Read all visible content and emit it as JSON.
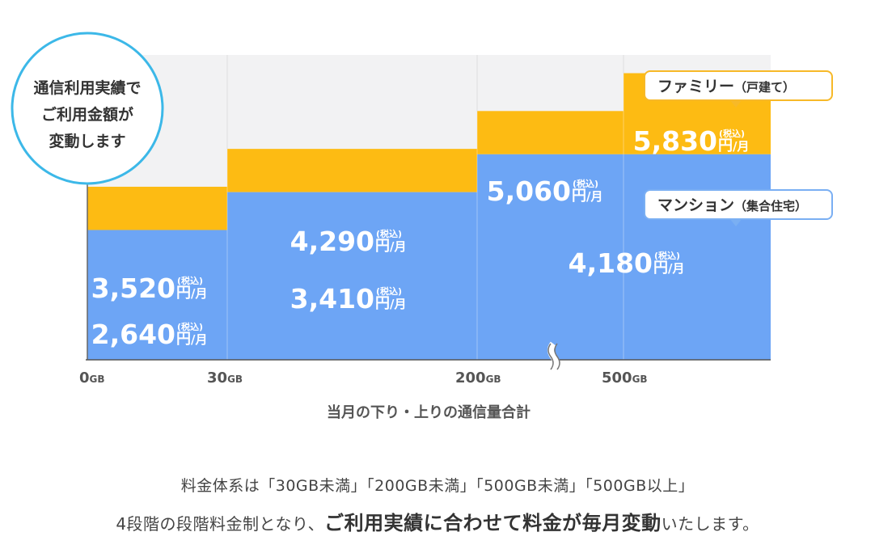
{
  "chart_data": {
    "type": "bar",
    "categories": [
      "0GB",
      "30GB",
      "200GB",
      "500GB"
    ],
    "tiers": [
      {
        "family": "3,520",
        "mansion": "2,640"
      },
      {
        "family": "4,290",
        "mansion": "3,410"
      },
      {
        "family": "5,060",
        "mansion": "4,180"
      },
      {
        "family": "5,830",
        "mansion": "4,180"
      }
    ],
    "series": [
      {
        "name": "ファミリー（戸建て）",
        "values": [
          3520,
          4290,
          5060,
          5830
        ]
      },
      {
        "name": "マンション（集合住宅）",
        "values": [
          2640,
          3410,
          4180,
          4180
        ]
      }
    ],
    "ylim": [
      0,
      6200
    ],
    "xlabel": "当月の下り・上りの通信量合計",
    "unit_main": "円",
    "unit_sub": "/月",
    "tax_label": "(税込)",
    "gb_unit": "GB",
    "tick_numbers": [
      "0",
      "30",
      "200",
      "500"
    ]
  },
  "colors": {
    "family": "#FDBB13",
    "mansion": "#6DA5F5",
    "plot_bg": "#F2F2F3",
    "circle_border": "#3CB8E8",
    "family_callout_border": "#F7B928",
    "mansion_callout_border": "#7AAFF3"
  },
  "badge": {
    "line1": "通信利用実績で",
    "line2": "ご利用金額が",
    "line3": "変動します"
  },
  "callouts": {
    "family": {
      "main": "ファミリー",
      "sub": "（戸建て）"
    },
    "mansion": {
      "main": "マンション",
      "sub": "（集合住宅）"
    }
  },
  "note": {
    "line1": "料金体系は「30GB未満」「200GB未満」「500GB未満」「500GB以上」",
    "line2_pre": "4段階の段階料金制となり、",
    "line2_bold": "ご利用実績に合わせて料金が毎月変動",
    "line2_post": "いたします。"
  }
}
